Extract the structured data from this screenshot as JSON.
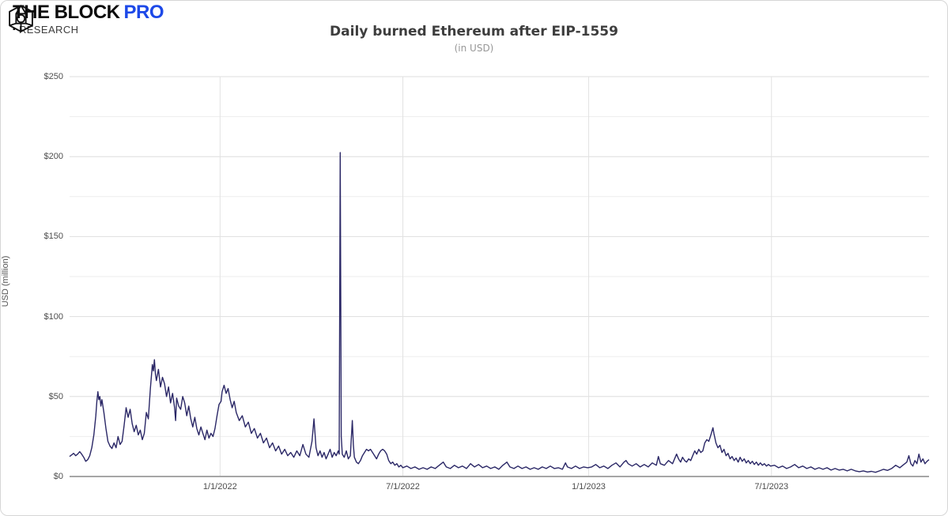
{
  "header": {
    "brand": "THE BLOCK",
    "brand_pro": "PRO",
    "research_bullet": "▪",
    "research": "RESEARCH",
    "pro_color": "#1d49e8"
  },
  "chart_data": {
    "type": "line",
    "title": "Daily burned Ethereum after EIP-1559",
    "subtitle": "(in USD)",
    "ylabel": "USD (million)",
    "xlabel": "",
    "ylim": [
      0,
      250
    ],
    "yticks": {
      "values": [
        0,
        50,
        100,
        150,
        200,
        250
      ],
      "labels": [
        "$0",
        "$50",
        "$100",
        "$150",
        "$200",
        "$250"
      ]
    },
    "yticks_minor": [
      25,
      75,
      125,
      175,
      225
    ],
    "xticks": {
      "days": [
        149,
        330,
        514,
        695
      ],
      "labels": [
        "1/1/2022",
        "7/1/2022",
        "1/1/2023",
        "7/1/2023"
      ]
    },
    "x_span_days": 851,
    "grid": true,
    "legend": "none",
    "colors": {
      "line": "#2a2766",
      "grid_major": "#dedede",
      "grid_minor": "#ededed",
      "grid_vertical": "#e2e2e2",
      "axis": "#a6a6a6"
    },
    "series": [
      {
        "name": "Daily burned Ethereum (USD million)",
        "points": [
          [
            0,
            12.5
          ],
          [
            2,
            13.5
          ],
          [
            4,
            14.5
          ],
          [
            6,
            13
          ],
          [
            8,
            14
          ],
          [
            10,
            15.5
          ],
          [
            12,
            14
          ],
          [
            14,
            12
          ],
          [
            16,
            9.5
          ],
          [
            18,
            10.5
          ],
          [
            20,
            13
          ],
          [
            22,
            18
          ],
          [
            24,
            26
          ],
          [
            26,
            38
          ],
          [
            27,
            47
          ],
          [
            28,
            53
          ],
          [
            29,
            48
          ],
          [
            30,
            50
          ],
          [
            31,
            44
          ],
          [
            32,
            48
          ],
          [
            34,
            40
          ],
          [
            36,
            30
          ],
          [
            38,
            22
          ],
          [
            40,
            19
          ],
          [
            42,
            17.5
          ],
          [
            44,
            21
          ],
          [
            46,
            18
          ],
          [
            48,
            25
          ],
          [
            50,
            20
          ],
          [
            52,
            22
          ],
          [
            54,
            32
          ],
          [
            56,
            43
          ],
          [
            58,
            37
          ],
          [
            60,
            42
          ],
          [
            62,
            33
          ],
          [
            64,
            28
          ],
          [
            66,
            32
          ],
          [
            68,
            26
          ],
          [
            70,
            29
          ],
          [
            72,
            23
          ],
          [
            74,
            27
          ],
          [
            76,
            40
          ],
          [
            78,
            36
          ],
          [
            80,
            55
          ],
          [
            82,
            70
          ],
          [
            83,
            66
          ],
          [
            84,
            73
          ],
          [
            85,
            64
          ],
          [
            86,
            60
          ],
          [
            88,
            67
          ],
          [
            90,
            56
          ],
          [
            92,
            62
          ],
          [
            94,
            58
          ],
          [
            96,
            50
          ],
          [
            98,
            56
          ],
          [
            100,
            46
          ],
          [
            102,
            52
          ],
          [
            104,
            43
          ],
          [
            105,
            35
          ],
          [
            106,
            49
          ],
          [
            108,
            44
          ],
          [
            110,
            42
          ],
          [
            112,
            50
          ],
          [
            114,
            46
          ],
          [
            116,
            38
          ],
          [
            118,
            44
          ],
          [
            120,
            36
          ],
          [
            122,
            31
          ],
          [
            124,
            37
          ],
          [
            126,
            30
          ],
          [
            128,
            26
          ],
          [
            130,
            31
          ],
          [
            132,
            27
          ],
          [
            134,
            23
          ],
          [
            136,
            29
          ],
          [
            138,
            24
          ],
          [
            140,
            27
          ],
          [
            142,
            25
          ],
          [
            144,
            30
          ],
          [
            146,
            38
          ],
          [
            148,
            45
          ],
          [
            150,
            47
          ],
          [
            151,
            53
          ],
          [
            153,
            57
          ],
          [
            155,
            52
          ],
          [
            157,
            55
          ],
          [
            159,
            48
          ],
          [
            161,
            43
          ],
          [
            163,
            47
          ],
          [
            165,
            40
          ],
          [
            168,
            35
          ],
          [
            171,
            38
          ],
          [
            174,
            31
          ],
          [
            177,
            34
          ],
          [
            180,
            27
          ],
          [
            183,
            30
          ],
          [
            186,
            24
          ],
          [
            189,
            27
          ],
          [
            192,
            21
          ],
          [
            195,
            24
          ],
          [
            198,
            18
          ],
          [
            201,
            21
          ],
          [
            204,
            16
          ],
          [
            207,
            19
          ],
          [
            210,
            14
          ],
          [
            213,
            17
          ],
          [
            216,
            13
          ],
          [
            219,
            15
          ],
          [
            222,
            12
          ],
          [
            225,
            16
          ],
          [
            228,
            13
          ],
          [
            231,
            20
          ],
          [
            234,
            14
          ],
          [
            237,
            12
          ],
          [
            240,
            22
          ],
          [
            242,
            36
          ],
          [
            244,
            18
          ],
          [
            246,
            13
          ],
          [
            248,
            16
          ],
          [
            250,
            12
          ],
          [
            252,
            15
          ],
          [
            254,
            11
          ],
          [
            256,
            14
          ],
          [
            258,
            17
          ],
          [
            260,
            12
          ],
          [
            262,
            15
          ],
          [
            264,
            13
          ],
          [
            266,
            16
          ],
          [
            267,
            14
          ],
          [
            268,
            202.5
          ],
          [
            269,
            25
          ],
          [
            270,
            14
          ],
          [
            272,
            12
          ],
          [
            274,
            16
          ],
          [
            276,
            11
          ],
          [
            278,
            13
          ],
          [
            280,
            35
          ],
          [
            281,
            20
          ],
          [
            282,
            12
          ],
          [
            284,
            9
          ],
          [
            286,
            8
          ],
          [
            288,
            10
          ],
          [
            290,
            13
          ],
          [
            292,
            15
          ],
          [
            294,
            17
          ],
          [
            296,
            16
          ],
          [
            298,
            17
          ],
          [
            300,
            15
          ],
          [
            302,
            13
          ],
          [
            304,
            11
          ],
          [
            306,
            14
          ],
          [
            308,
            16
          ],
          [
            310,
            17
          ],
          [
            312,
            16
          ],
          [
            314,
            14
          ],
          [
            316,
            10
          ],
          [
            318,
            8
          ],
          [
            320,
            9
          ],
          [
            322,
            7
          ],
          [
            324,
            8
          ],
          [
            326,
            6
          ],
          [
            328,
            7
          ],
          [
            330,
            5.5
          ],
          [
            334,
            6.5
          ],
          [
            338,
            5
          ],
          [
            342,
            6
          ],
          [
            346,
            4.5
          ],
          [
            350,
            5.5
          ],
          [
            354,
            4.5
          ],
          [
            358,
            6
          ],
          [
            362,
            5
          ],
          [
            366,
            7
          ],
          [
            370,
            9
          ],
          [
            373,
            6
          ],
          [
            377,
            5
          ],
          [
            381,
            7
          ],
          [
            385,
            5.5
          ],
          [
            389,
            6.5
          ],
          [
            393,
            5
          ],
          [
            397,
            8
          ],
          [
            401,
            6
          ],
          [
            405,
            7.5
          ],
          [
            409,
            5.5
          ],
          [
            413,
            6.5
          ],
          [
            417,
            5
          ],
          [
            421,
            6
          ],
          [
            425,
            4.5
          ],
          [
            429,
            7
          ],
          [
            433,
            9
          ],
          [
            436,
            6
          ],
          [
            440,
            5
          ],
          [
            444,
            6.5
          ],
          [
            448,
            5
          ],
          [
            452,
            6
          ],
          [
            456,
            4.5
          ],
          [
            460,
            5.5
          ],
          [
            464,
            4.5
          ],
          [
            468,
            6
          ],
          [
            472,
            5
          ],
          [
            476,
            6.5
          ],
          [
            480,
            5
          ],
          [
            484,
            5.5
          ],
          [
            488,
            4.5
          ],
          [
            491,
            8.5
          ],
          [
            493,
            6
          ],
          [
            497,
            5
          ],
          [
            501,
            6.5
          ],
          [
            505,
            5
          ],
          [
            509,
            6
          ],
          [
            513,
            5.5
          ],
          [
            517,
            6
          ],
          [
            521,
            7.5
          ],
          [
            525,
            5.5
          ],
          [
            529,
            6.5
          ],
          [
            533,
            5
          ],
          [
            537,
            7
          ],
          [
            541,
            8.5
          ],
          [
            545,
            6
          ],
          [
            549,
            9
          ],
          [
            551,
            10
          ],
          [
            553,
            8
          ],
          [
            557,
            6.5
          ],
          [
            561,
            8
          ],
          [
            565,
            6
          ],
          [
            569,
            7.5
          ],
          [
            573,
            6
          ],
          [
            577,
            8.5
          ],
          [
            581,
            7
          ],
          [
            583,
            12.5
          ],
          [
            585,
            8
          ],
          [
            589,
            7
          ],
          [
            593,
            10
          ],
          [
            597,
            8
          ],
          [
            601,
            14
          ],
          [
            603,
            11
          ],
          [
            605,
            9
          ],
          [
            607,
            12
          ],
          [
            609,
            10
          ],
          [
            611,
            9
          ],
          [
            613,
            11
          ],
          [
            615,
            10
          ],
          [
            617,
            13
          ],
          [
            619,
            16
          ],
          [
            621,
            14
          ],
          [
            623,
            17
          ],
          [
            625,
            15
          ],
          [
            627,
            16
          ],
          [
            629,
            21
          ],
          [
            631,
            23
          ],
          [
            633,
            22
          ],
          [
            635,
            26
          ],
          [
            637,
            30.5
          ],
          [
            638,
            27
          ],
          [
            639,
            24
          ],
          [
            640,
            21
          ],
          [
            642,
            18
          ],
          [
            644,
            19.5
          ],
          [
            646,
            15
          ],
          [
            648,
            17
          ],
          [
            650,
            13
          ],
          [
            652,
            14.5
          ],
          [
            654,
            11
          ],
          [
            656,
            12.5
          ],
          [
            658,
            10
          ],
          [
            660,
            11.5
          ],
          [
            662,
            9
          ],
          [
            664,
            12
          ],
          [
            666,
            9.5
          ],
          [
            668,
            11
          ],
          [
            670,
            8.5
          ],
          [
            672,
            10
          ],
          [
            674,
            8
          ],
          [
            676,
            9.5
          ],
          [
            678,
            7.5
          ],
          [
            680,
            9
          ],
          [
            682,
            7
          ],
          [
            684,
            8.5
          ],
          [
            686,
            7
          ],
          [
            688,
            8
          ],
          [
            690,
            6.5
          ],
          [
            692,
            7.5
          ],
          [
            694,
            6.5
          ],
          [
            698,
            7
          ],
          [
            702,
            5.5
          ],
          [
            706,
            6.5
          ],
          [
            710,
            5
          ],
          [
            714,
            6
          ],
          [
            718,
            7.5
          ],
          [
            722,
            5.5
          ],
          [
            726,
            6.5
          ],
          [
            730,
            5
          ],
          [
            734,
            6
          ],
          [
            738,
            4.5
          ],
          [
            742,
            5.5
          ],
          [
            746,
            4.5
          ],
          [
            750,
            5.5
          ],
          [
            754,
            4
          ],
          [
            758,
            5
          ],
          [
            762,
            4
          ],
          [
            766,
            4.5
          ],
          [
            770,
            3.5
          ],
          [
            774,
            4.5
          ],
          [
            778,
            3.5
          ],
          [
            782,
            3
          ],
          [
            786,
            3.5
          ],
          [
            790,
            2.8
          ],
          [
            794,
            3.2
          ],
          [
            798,
            2.6
          ],
          [
            802,
            3.5
          ],
          [
            806,
            4.5
          ],
          [
            810,
            3.8
          ],
          [
            814,
            5
          ],
          [
            818,
            7
          ],
          [
            822,
            5.5
          ],
          [
            826,
            7.5
          ],
          [
            829,
            9
          ],
          [
            831,
            13
          ],
          [
            833,
            8
          ],
          [
            835,
            6.5
          ],
          [
            837,
            10
          ],
          [
            839,
            8
          ],
          [
            841,
            14
          ],
          [
            843,
            9
          ],
          [
            845,
            11
          ],
          [
            847,
            8
          ],
          [
            849,
            9.5
          ],
          [
            851,
            10.5
          ]
        ]
      }
    ]
  }
}
